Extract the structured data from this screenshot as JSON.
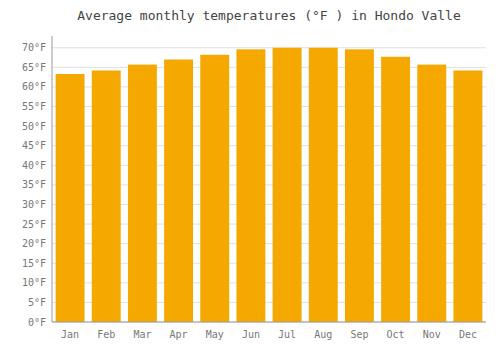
{
  "chart_data": {
    "type": "bar",
    "title": "Average monthly temperatures (°F ) in Hondo Valle",
    "categories": [
      "Jan",
      "Feb",
      "Mar",
      "Apr",
      "May",
      "Jun",
      "Jul",
      "Aug",
      "Sep",
      "Oct",
      "Nov",
      "Dec"
    ],
    "values": [
      63.3,
      64.2,
      65.7,
      67.0,
      68.2,
      69.6,
      70.0,
      70.0,
      69.6,
      67.7,
      65.7,
      64.2
    ],
    "color": "#F5A800",
    "ylim": [
      0,
      73
    ],
    "yticks": [
      {
        "value": 0,
        "label": "0°F"
      },
      {
        "value": 5,
        "label": "5°F"
      },
      {
        "value": 10,
        "label": "10°F"
      },
      {
        "value": 15,
        "label": "15°F"
      },
      {
        "value": 20,
        "label": "20°F"
      },
      {
        "value": 25,
        "label": "25°F"
      },
      {
        "value": 30,
        "label": "30°F"
      },
      {
        "value": 35,
        "label": "35°F"
      },
      {
        "value": 40,
        "label": "40°F"
      },
      {
        "value": 45,
        "label": "45°F"
      },
      {
        "value": 50,
        "label": "50°F"
      },
      {
        "value": 55,
        "label": "55°F"
      },
      {
        "value": 60,
        "label": "60°F"
      },
      {
        "value": 65,
        "label": "65°F"
      },
      {
        "value": 70,
        "label": "70°F"
      }
    ],
    "grid": true
  }
}
